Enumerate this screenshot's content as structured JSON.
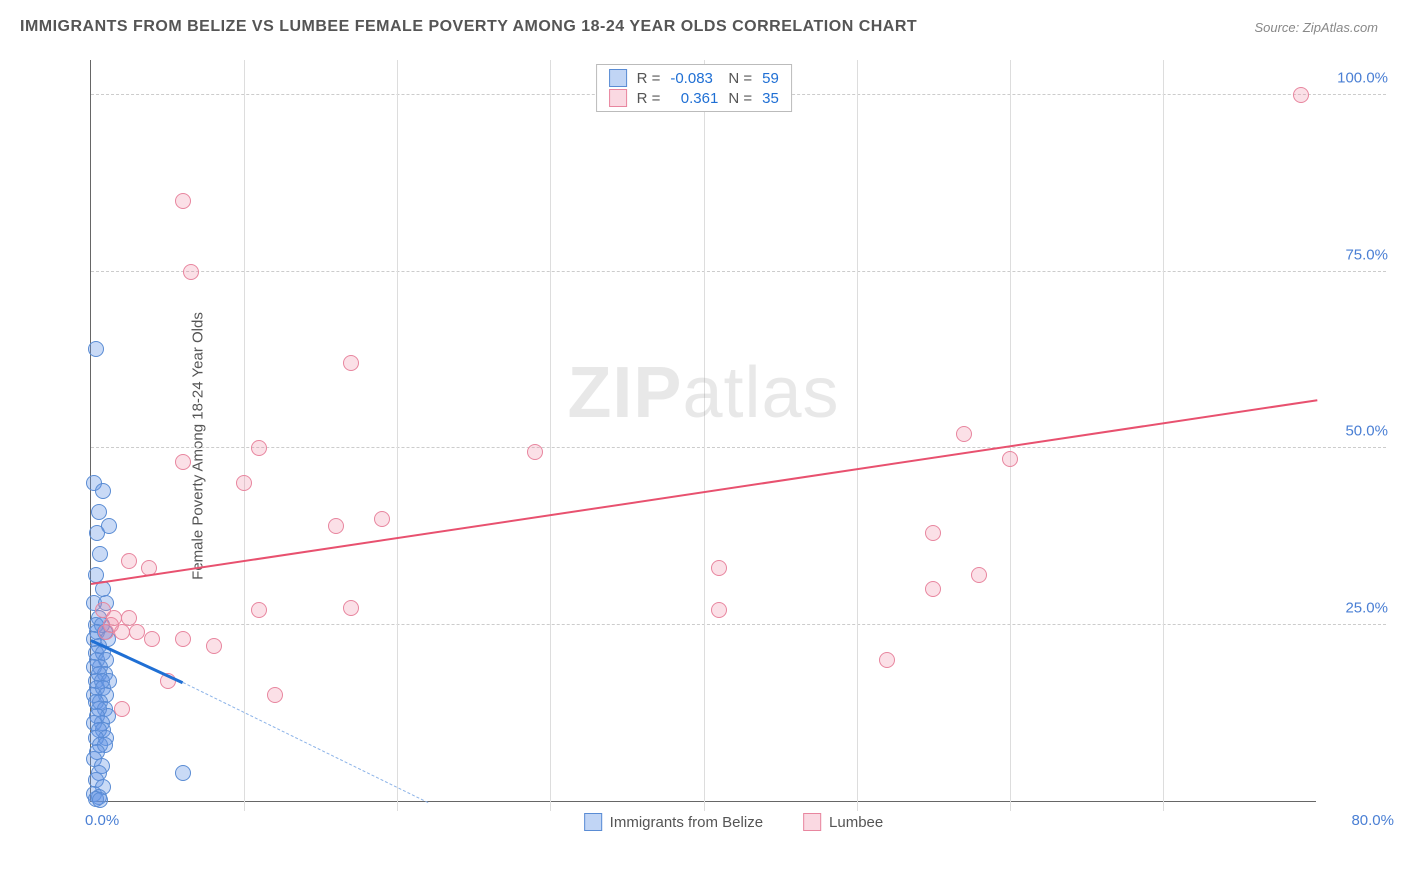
{
  "title": "IMMIGRANTS FROM BELIZE VS LUMBEE FEMALE POVERTY AMONG 18-24 YEAR OLDS CORRELATION CHART",
  "source": "Source: ZipAtlas.com",
  "watermark_bold": "ZIP",
  "watermark_light": "atlas",
  "chart": {
    "type": "scatter",
    "y_label": "Female Poverty Among 18-24 Year Olds",
    "xlim": [
      0,
      80
    ],
    "ylim": [
      0,
      105
    ],
    "y_ticks": [
      25,
      50,
      75,
      100
    ],
    "y_tick_labels": [
      "25.0%",
      "50.0%",
      "75.0%",
      "100.0%"
    ],
    "x_left_label": "0.0%",
    "x_right_label": "80.0%",
    "x_gridlines": [
      10,
      20,
      30,
      40,
      50,
      60,
      70
    ],
    "background_color": "#ffffff",
    "grid_color": "#cccccc",
    "marker_radius": 8,
    "series": [
      {
        "name": "Immigrants from Belize",
        "color_fill": "rgba(100,150,230,0.35)",
        "color_stroke": "#5a8cd4",
        "R_label": "R = ",
        "R_value": "-0.083",
        "N_label": "N = ",
        "N_value": "59",
        "trend": {
          "x1": 0,
          "y1": 23,
          "x2": 6,
          "y2": 17,
          "color": "#1f6fd4",
          "width": 2.5
        },
        "trend_ext": {
          "x1": 6,
          "y1": 17,
          "x2": 22,
          "y2": 0,
          "dashed": true
        },
        "points": [
          [
            0.3,
            64
          ],
          [
            0.2,
            45
          ],
          [
            0.8,
            44
          ],
          [
            0.5,
            41
          ],
          [
            1.2,
            39
          ],
          [
            0.4,
            38
          ],
          [
            0.6,
            35
          ],
          [
            0.3,
            32
          ],
          [
            0.8,
            30
          ],
          [
            0.2,
            28
          ],
          [
            1.0,
            28
          ],
          [
            0.5,
            26
          ],
          [
            0.3,
            25
          ],
          [
            0.7,
            25
          ],
          [
            0.4,
            24
          ],
          [
            0.9,
            24
          ],
          [
            0.2,
            23
          ],
          [
            1.1,
            23
          ],
          [
            0.5,
            22
          ],
          [
            0.3,
            21
          ],
          [
            0.8,
            21
          ],
          [
            0.4,
            20
          ],
          [
            1.0,
            20
          ],
          [
            0.6,
            19
          ],
          [
            0.2,
            19
          ],
          [
            0.9,
            18
          ],
          [
            0.5,
            18
          ],
          [
            0.3,
            17
          ],
          [
            1.2,
            17
          ],
          [
            0.7,
            17
          ],
          [
            0.4,
            16
          ],
          [
            0.8,
            16
          ],
          [
            0.2,
            15
          ],
          [
            1.0,
            15
          ],
          [
            0.6,
            14
          ],
          [
            0.3,
            14
          ],
          [
            0.9,
            13
          ],
          [
            0.5,
            13
          ],
          [
            1.1,
            12
          ],
          [
            0.4,
            12
          ],
          [
            0.7,
            11
          ],
          [
            0.2,
            11
          ],
          [
            0.8,
            10
          ],
          [
            0.5,
            10
          ],
          [
            1.0,
            9
          ],
          [
            0.3,
            9
          ],
          [
            0.6,
            8
          ],
          [
            0.9,
            8
          ],
          [
            0.4,
            7
          ],
          [
            0.2,
            6
          ],
          [
            0.7,
            5
          ],
          [
            0.5,
            4
          ],
          [
            6,
            4
          ],
          [
            0.3,
            3
          ],
          [
            0.8,
            2
          ],
          [
            0.2,
            1
          ],
          [
            0.5,
            0.5
          ],
          [
            0.3,
            0.3
          ],
          [
            0.6,
            0.2
          ]
        ]
      },
      {
        "name": "Lumbee",
        "color_fill": "rgba(240,130,160,0.25)",
        "color_stroke": "#e8869f",
        "R_label": "R = ",
        "R_value": "0.361",
        "N_label": "N = ",
        "N_value": "35",
        "trend": {
          "x1": 0,
          "y1": 31,
          "x2": 80,
          "y2": 57,
          "color": "#e8516f",
          "width": 2
        },
        "points": [
          [
            79,
            100
          ],
          [
            6,
            85
          ],
          [
            6.5,
            75
          ],
          [
            17,
            62
          ],
          [
            57,
            52
          ],
          [
            11,
            50
          ],
          [
            29,
            49.5
          ],
          [
            60,
            48.5
          ],
          [
            6,
            48
          ],
          [
            10,
            45
          ],
          [
            16,
            39
          ],
          [
            19,
            40
          ],
          [
            55,
            38
          ],
          [
            2.5,
            34
          ],
          [
            3.8,
            33
          ],
          [
            41,
            33
          ],
          [
            58,
            32
          ],
          [
            55,
            30
          ],
          [
            11,
            27
          ],
          [
            17,
            27.3
          ],
          [
            41,
            27
          ],
          [
            1.3,
            25
          ],
          [
            0.8,
            27
          ],
          [
            1.5,
            26
          ],
          [
            2,
            24
          ],
          [
            2.5,
            26
          ],
          [
            3,
            24
          ],
          [
            4,
            23
          ],
          [
            6,
            23
          ],
          [
            8,
            22
          ],
          [
            52,
            20
          ],
          [
            5,
            17
          ],
          [
            12,
            15
          ],
          [
            2,
            13
          ],
          [
            1,
            24
          ]
        ]
      }
    ]
  },
  "legend_bottom": {
    "items": [
      {
        "swatch": "blue",
        "label": "Immigrants from Belize"
      },
      {
        "swatch": "pink",
        "label": "Lumbee"
      }
    ]
  }
}
